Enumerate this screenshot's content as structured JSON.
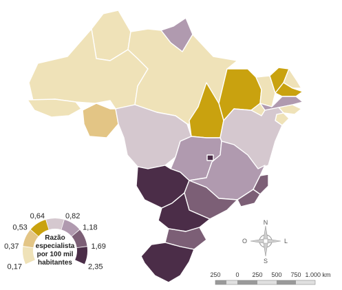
{
  "colors": {
    "c1": "#efe2b8",
    "c2": "#e3c585",
    "c3": "#c9a20f",
    "c4": "#d5c8cf",
    "c5": "#b09aaf",
    "c6": "#7c5f76",
    "c7": "#4b2d48",
    "border": "#ffffff"
  },
  "legend": {
    "title_lines": [
      "Razão",
      "especialista",
      "por 100 mil",
      "habitantes"
    ],
    "breaks": [
      "0,17",
      "0,37",
      "0,53",
      "0,64",
      "0,82",
      "1,18",
      "1,69",
      "2,35"
    ],
    "class_colors": [
      "#efe2b8",
      "#e3c585",
      "#c9a20f",
      "#d5c8cf",
      "#b09aaf",
      "#7c5f76",
      "#4b2d48"
    ]
  },
  "compass": {
    "n": "N",
    "s": "S",
    "l": "L",
    "o": "O"
  },
  "scale": {
    "labels": [
      "250",
      "0",
      "250",
      "500",
      "750",
      "1.000 km"
    ]
  },
  "states": [
    {
      "id": "RR",
      "cls": "c1"
    },
    {
      "id": "AP",
      "cls": "c5"
    },
    {
      "id": "AM",
      "cls": "c1"
    },
    {
      "id": "PA",
      "cls": "c1"
    },
    {
      "id": "AC",
      "cls": "c1"
    },
    {
      "id": "RO",
      "cls": "c2"
    },
    {
      "id": "MA",
      "cls": "c3"
    },
    {
      "id": "PI",
      "cls": "c1"
    },
    {
      "id": "CE",
      "cls": "c3"
    },
    {
      "id": "RN",
      "cls": "c1"
    },
    {
      "id": "PB",
      "cls": "c3"
    },
    {
      "id": "PE",
      "cls": "c5"
    },
    {
      "id": "AL",
      "cls": "c1"
    },
    {
      "id": "SE",
      "cls": "c1"
    },
    {
      "id": "TO",
      "cls": "c3"
    },
    {
      "id": "BA",
      "cls": "c4"
    },
    {
      "id": "MT",
      "cls": "c4"
    },
    {
      "id": "GO",
      "cls": "c5"
    },
    {
      "id": "DF",
      "cls": "c7"
    },
    {
      "id": "MG",
      "cls": "c5"
    },
    {
      "id": "ES",
      "cls": "c6"
    },
    {
      "id": "MS",
      "cls": "c7"
    },
    {
      "id": "SP",
      "cls": "c6"
    },
    {
      "id": "RJ",
      "cls": "c6"
    },
    {
      "id": "PR",
      "cls": "c7"
    },
    {
      "id": "SC",
      "cls": "c6"
    },
    {
      "id": "RS",
      "cls": "c7"
    }
  ]
}
